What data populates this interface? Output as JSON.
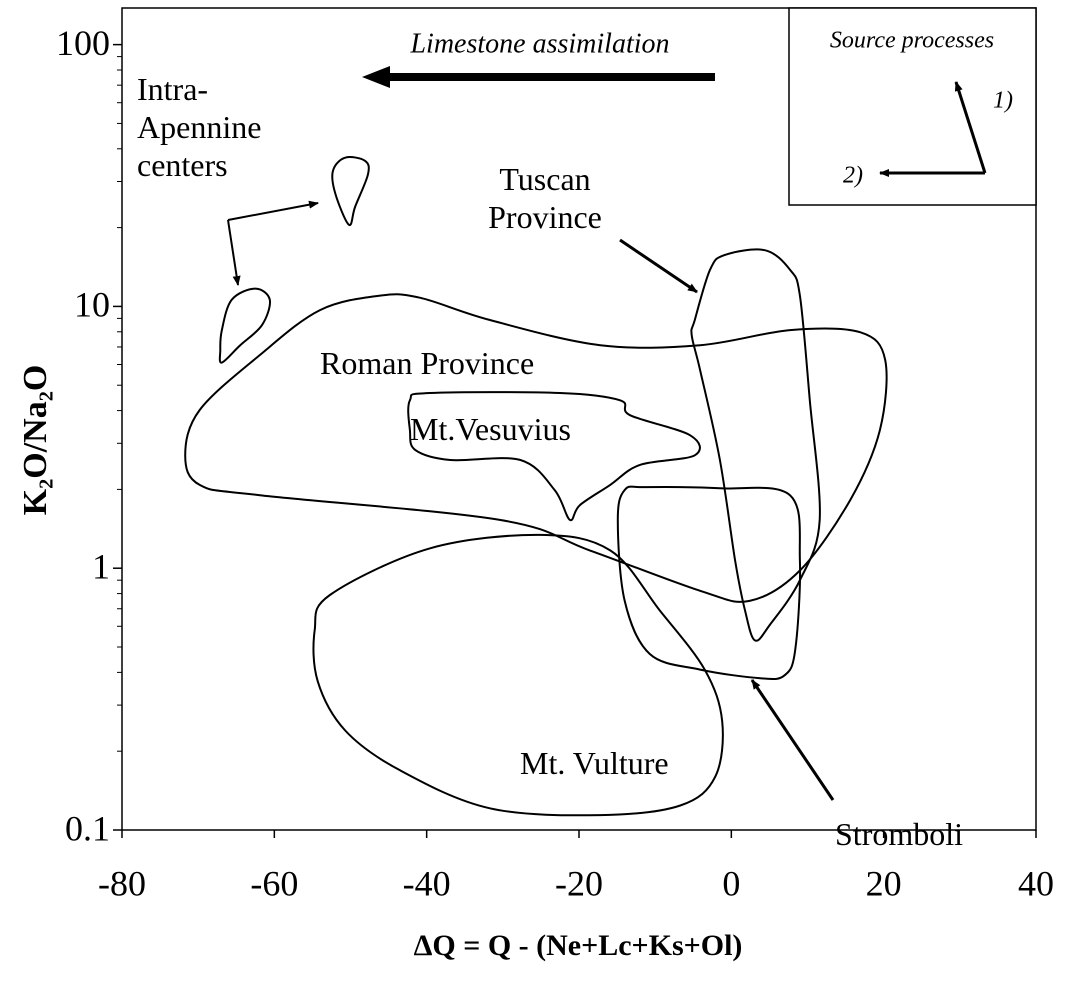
{
  "chart_data": {
    "type": "field",
    "x_label": "ΔQ = Q - (Ne+Lc+Ks+Ol)",
    "y_label": "K₂O/Na₂O",
    "xlim": [
      -80,
      40
    ],
    "xticks": [
      -80,
      -60,
      -40,
      -20,
      0,
      20,
      40
    ],
    "ylim": [
      0.1,
      138
    ],
    "yscale": "log",
    "yticks": [
      0.1,
      1,
      10,
      100
    ],
    "yminorticks": [
      0.2,
      0.3,
      0.4,
      0.5,
      0.6,
      0.7,
      0.8,
      0.9,
      2,
      3,
      4,
      5,
      6,
      7,
      8,
      9,
      20,
      30,
      40,
      50,
      60,
      70,
      80,
      90
    ],
    "annotations": [
      "Limestone assimilation",
      "Source processes",
      "1)",
      "2)"
    ],
    "series": [
      {
        "name": "Intra-Apennine centers",
        "color": "#000000",
        "shapes": [
          {
            "x": [
              -52.3,
              -50.7,
              -48.1,
              -47.7,
              -49.4,
              -50.2,
              -52.0
            ],
            "y": [
              33,
              37,
              36,
              32,
              24,
              20.5,
              27
            ]
          },
          {
            "x": [
              -67.1,
              -66.9,
              -65.6,
              -62.5,
              -60.6,
              -61.6,
              -64.5,
              -66.9
            ],
            "y": [
              6.8,
              8.1,
              10.6,
              11.7,
              10.6,
              8.5,
              7.1,
              6.1
            ]
          }
        ]
      },
      {
        "name": "Tuscan Province",
        "color": "#000000",
        "shapes": [
          {
            "x": [
              -4.8,
              -2.8,
              -0.9,
              4.4,
              7.7,
              9.0,
              10.3,
              11.6,
              9.0,
              5.1,
              3.1,
              1.8,
              0.5,
              -1.5,
              -4.1,
              -5.2
            ],
            "y": [
              8.87,
              13.8,
              15.7,
              16.4,
              13.8,
              11.0,
              4.38,
              1.53,
              0.9,
              0.61,
              0.53,
              0.69,
              1.07,
              2.59,
              5.71,
              7.77
            ]
          }
        ]
      },
      {
        "name": "Roman Province",
        "color": "#000000",
        "shapes": [
          {
            "x": [
              -69.8,
              -61.9,
              -30.4,
              -18.6,
              -4.1,
              2.4,
              9.0,
              15.6,
              19.5,
              20.2,
              16.9,
              7.7,
              -4.1,
              -17.2,
              -31.7,
              -40.9,
              -46.1,
              -54.0,
              -61.9,
              -69.8,
              -71.7
            ],
            "y": [
              2.08,
              1.9,
              1.53,
              1.17,
              0.82,
              0.75,
              0.98,
              1.82,
              3.37,
              6.24,
              7.97,
              8.12,
              7.11,
              7.11,
              8.87,
              10.8,
              11.0,
              9.68,
              6.52,
              4.02,
              2.7
            ]
          }
        ]
      },
      {
        "name": "Mt.Vesuvius",
        "color": "#000000",
        "shapes": [
          {
            "x": [
              -42.2,
              -42.2,
              -39.6,
              -22.5,
              -14.6,
              -13.3,
              -5.4,
              -4.8,
              -12.0,
              -15.9,
              -19.9,
              -21.2,
              -23.2,
              -27.7,
              -36.9,
              -41.5
            ],
            "y": [
              3.37,
              4.38,
              4.67,
              4.67,
              4.38,
              3.84,
              3.22,
              2.7,
              2.48,
              2.08,
              1.74,
              1.53,
              1.99,
              2.59,
              2.59,
              2.83
            ]
          }
        ]
      },
      {
        "name": "Mt. Vulture",
        "color": "#000000",
        "shapes": [
          {
            "x": [
              -52.7,
              -39.6,
              -25.1,
              -15.9,
              -9.4,
              -3.5,
              -1.2,
              -2.1,
              -6.7,
              -17.2,
              -31.7,
              -43.5,
              -50.7,
              -54.3,
              -54.7
            ],
            "y": [
              0.79,
              1.19,
              1.34,
              1.17,
              0.69,
              0.41,
              0.26,
              0.16,
              0.124,
              0.114,
              0.121,
              0.169,
              0.24,
              0.37,
              0.58
            ]
          }
        ]
      },
      {
        "name": "Stromboli",
        "color": "#000000",
        "shapes": [
          {
            "x": [
              -14.0,
              -11.3,
              -1.5,
              7.7,
              9.0,
              8.4,
              7.0,
              3.8,
              -4.1,
              -10.7,
              -14.0,
              -14.9
            ],
            "y": [
              1.99,
              2.04,
              2.02,
              1.9,
              1.07,
              0.49,
              0.39,
              0.38,
              0.41,
              0.47,
              0.75,
              1.53
            ]
          }
        ]
      }
    ]
  }
}
